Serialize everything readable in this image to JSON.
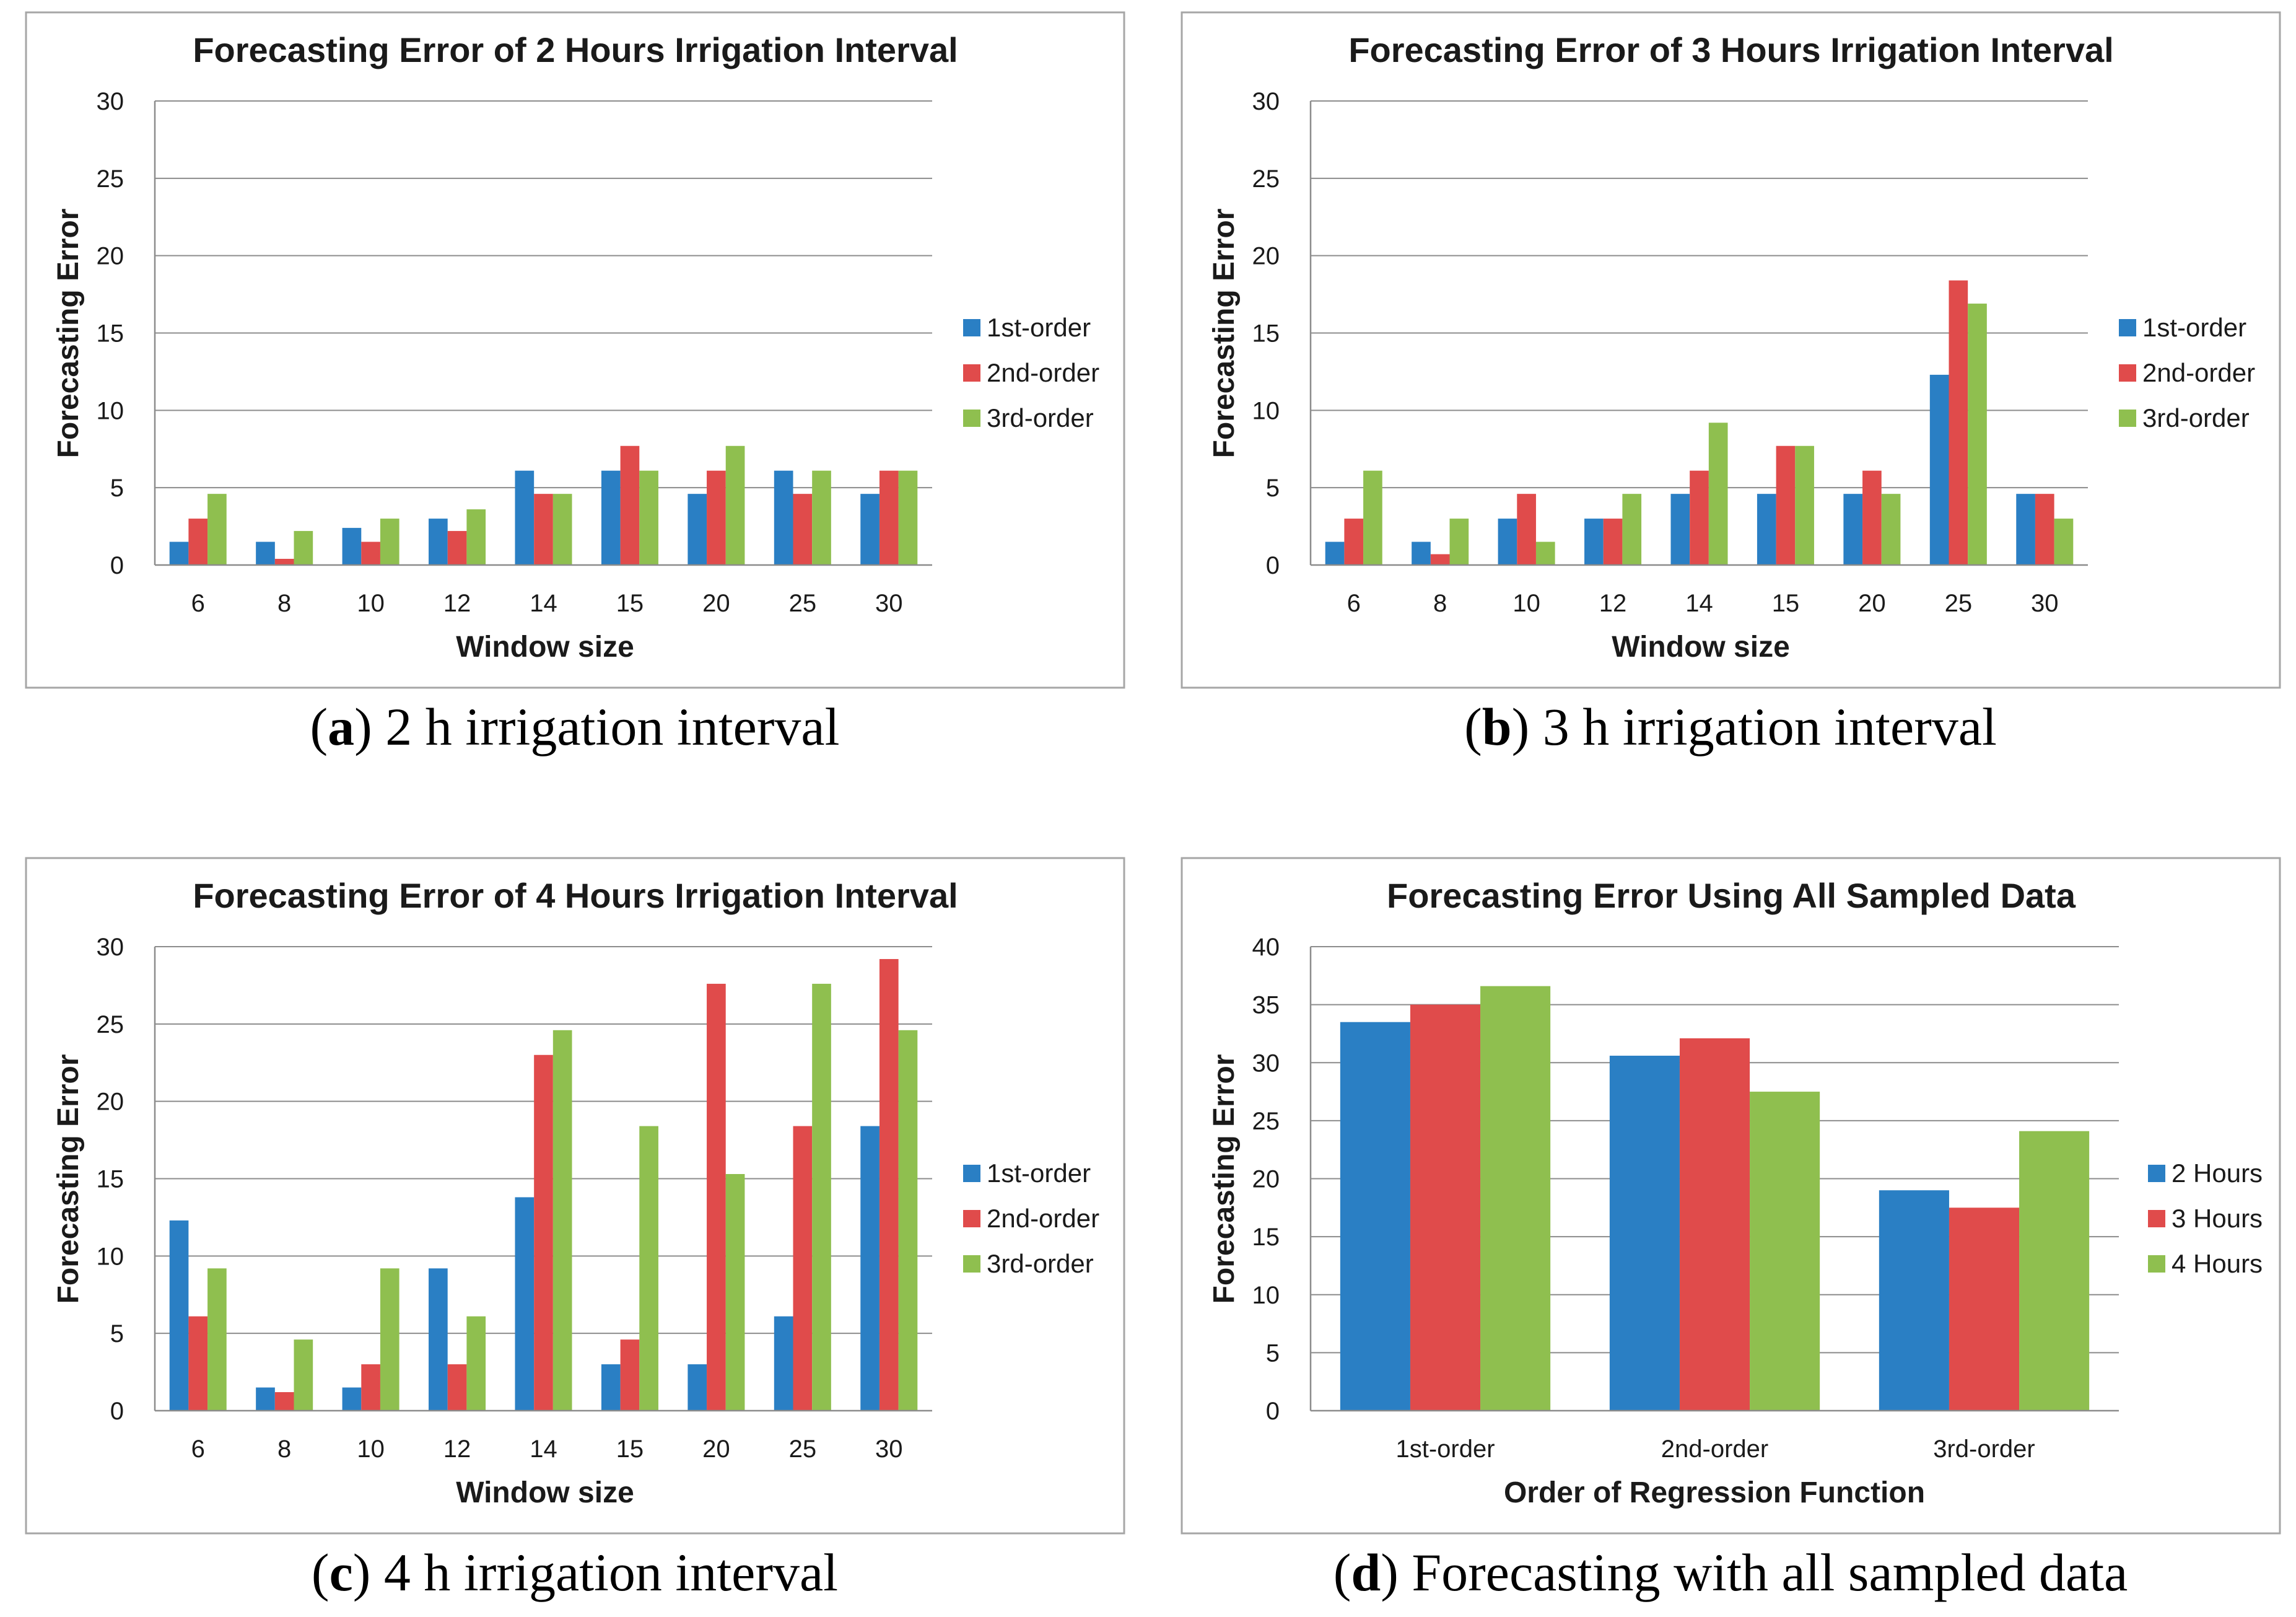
{
  "colors": {
    "series1": "#2a7fc4",
    "series2": "#e04b4b",
    "series3": "#8fbf4f"
  },
  "chart_data": [
    {
      "type": "bar",
      "title": "Forecasting Error of 2 Hours Irrigation Interval",
      "xlabel": "Window size",
      "ylabel": "Forecasting Error",
      "ylim": [
        0,
        30
      ],
      "yticks": [
        "0",
        "5",
        "10",
        "15",
        "20",
        "25",
        "30"
      ],
      "categories": [
        "6",
        "8",
        "10",
        "12",
        "14",
        "15",
        "20",
        "25",
        "30"
      ],
      "series": [
        {
          "name": "1st-order",
          "values": [
            1.5,
            1.5,
            2.4,
            3.0,
            6.1,
            6.1,
            4.6,
            6.1,
            4.6
          ]
        },
        {
          "name": "2nd-order",
          "values": [
            3.0,
            0.4,
            1.5,
            2.2,
            4.6,
            7.7,
            6.1,
            4.6,
            6.1
          ]
        },
        {
          "name": "3rd-order",
          "values": [
            4.6,
            2.2,
            3.0,
            3.6,
            4.6,
            6.1,
            7.7,
            6.1,
            6.1
          ]
        }
      ],
      "caption_letter": "a",
      "caption_text": ") 2 h irrigation interval"
    },
    {
      "type": "bar",
      "title": "Forecasting Error of 3 Hours Irrigation Interval",
      "xlabel": "Window size",
      "ylabel": "Forecasting Error",
      "ylim": [
        0,
        30
      ],
      "yticks": [
        "0",
        "5",
        "10",
        "15",
        "20",
        "25",
        "30"
      ],
      "categories": [
        "6",
        "8",
        "10",
        "12",
        "14",
        "15",
        "20",
        "25",
        "30"
      ],
      "series": [
        {
          "name": "1st-order",
          "values": [
            1.5,
            1.5,
            3.0,
            3.0,
            4.6,
            4.6,
            4.6,
            12.3,
            4.6
          ]
        },
        {
          "name": "2nd-order",
          "values": [
            3.0,
            0.7,
            4.6,
            3.0,
            6.1,
            7.7,
            6.1,
            18.4,
            4.6
          ]
        },
        {
          "name": "3rd-order",
          "values": [
            6.1,
            3.0,
            1.5,
            4.6,
            9.2,
            7.7,
            4.6,
            16.9,
            3.0
          ]
        }
      ],
      "caption_letter": "b",
      "caption_text": ") 3 h irrigation interval"
    },
    {
      "type": "bar",
      "title": "Forecasting Error of 4 Hours Irrigation Interval",
      "xlabel": "Window size",
      "ylabel": "Forecasting Error",
      "ylim": [
        0,
        30
      ],
      "yticks": [
        "0",
        "5",
        "10",
        "15",
        "20",
        "25",
        "30"
      ],
      "categories": [
        "6",
        "8",
        "10",
        "12",
        "14",
        "15",
        "20",
        "25",
        "30"
      ],
      "series": [
        {
          "name": "1st-order",
          "values": [
            12.3,
            1.5,
            1.5,
            9.2,
            13.8,
            3.0,
            3.0,
            6.1,
            18.4
          ]
        },
        {
          "name": "2nd-order",
          "values": [
            6.1,
            1.2,
            3.0,
            3.0,
            23.0,
            4.6,
            27.6,
            18.4,
            29.2
          ]
        },
        {
          "name": "3rd-order",
          "values": [
            9.2,
            4.6,
            9.2,
            6.1,
            24.6,
            18.4,
            15.3,
            27.6,
            24.6
          ]
        }
      ],
      "caption_letter": "c",
      "caption_text": ") 4 h irrigation interval"
    },
    {
      "type": "bar",
      "title": "Forecasting Error Using All Sampled Data",
      "xlabel": "Order of Regression Function",
      "ylabel": "Forecasting Error",
      "ylim": [
        0,
        40
      ],
      "yticks": [
        "0",
        "5",
        "10",
        "15",
        "20",
        "25",
        "30",
        "35",
        "40"
      ],
      "categories": [
        "1st-order",
        "2nd-order",
        "3rd-order"
      ],
      "series": [
        {
          "name": "2 Hours",
          "values": [
            33.5,
            30.6,
            19.0
          ]
        },
        {
          "name": "3 Hours",
          "values": [
            35.0,
            32.1,
            17.5
          ]
        },
        {
          "name": "4 Hours",
          "values": [
            36.6,
            27.5,
            24.1
          ]
        }
      ],
      "caption_letter": "d",
      "caption_text": ") Forecasting with all sampled data"
    }
  ]
}
